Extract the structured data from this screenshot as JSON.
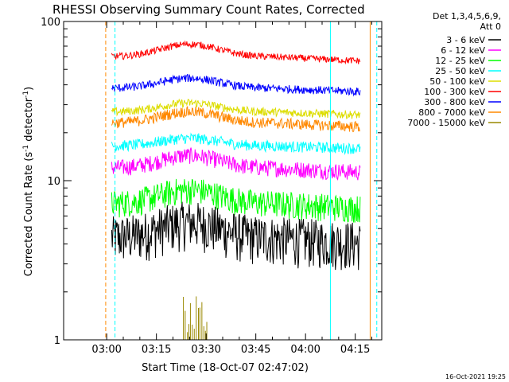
{
  "chart_data": {
    "type": "line",
    "title": "RHESSI Observing Summary Count Rates, Corrected",
    "xlabel": "Start Time (18-Oct-07 02:47:02)",
    "ylabel_main": "Corrected Count Rate (s",
    "ylabel_sup1": "-1",
    "ylabel_mid": " detector",
    "ylabel_sup2": "-1",
    "ylabel_end": ")",
    "yscale": "log",
    "ylim": [
      1,
      100
    ],
    "xlim_minutes": [
      -13,
      83
    ],
    "x_ticks": [
      {
        "m": 0,
        "label": "03:00"
      },
      {
        "m": 15,
        "label": "03:15"
      },
      {
        "m": 30,
        "label": "03:30"
      },
      {
        "m": 45,
        "label": "03:45"
      },
      {
        "m": 60,
        "label": "04:00"
      },
      {
        "m": 75,
        "label": "04:15"
      }
    ],
    "y_ticks": [
      {
        "v": 1,
        "label": "1"
      },
      {
        "v": 10,
        "label": "10"
      },
      {
        "v": 100,
        "label": "100"
      }
    ],
    "legend_header": [
      "Det 1,3,4,5,6,9,",
      "Att 0"
    ],
    "series": [
      {
        "name": "3 - 6 keV",
        "color": "#000000",
        "base": 4.4,
        "noise": 0.35,
        "bump": 0.25
      },
      {
        "name": "6 - 12 keV",
        "color": "#ff00ff",
        "base": 12.0,
        "noise": 0.12,
        "bump": 0.2
      },
      {
        "name": "12 - 25 keV",
        "color": "#00ff00",
        "base": 7.2,
        "noise": 0.2,
        "bump": 0.22
      },
      {
        "name": "25 - 50 keV",
        "color": "#00ffff",
        "base": 16.5,
        "noise": 0.08,
        "bump": 0.12
      },
      {
        "name": "50 - 100 keV",
        "color": "#dddd00",
        "base": 27.0,
        "noise": 0.06,
        "bump": 0.14
      },
      {
        "name": "100 - 300 keV",
        "color": "#ff0000",
        "base": 60.0,
        "noise": 0.05,
        "bump": 0.2
      },
      {
        "name": "300 - 800 keV",
        "color": "#0000ff",
        "base": 38.0,
        "noise": 0.06,
        "bump": 0.16
      },
      {
        "name": "800 - 7000 keV",
        "color": "#ff8800",
        "base": 23.0,
        "noise": 0.08,
        "bump": 0.18
      },
      {
        "name": "7000 - 15000 keV",
        "color": "#998800",
        "base": 1.0,
        "noise": 0.0,
        "bump": 0.0
      }
    ],
    "data_range_minutes": [
      1.5,
      76.5
    ],
    "vertical_lines": [
      {
        "m": -0.3,
        "color": "#ff8800",
        "dash": true
      },
      {
        "m": 2.5,
        "color": "#00ffff",
        "dash": true
      },
      {
        "m": 67.5,
        "color": "#00ffff",
        "dash": false
      },
      {
        "m": 79.5,
        "color": "#ff8800",
        "dash": false
      },
      {
        "m": 81.5,
        "color": "#00ffff",
        "dash": true
      }
    ],
    "timestamp": "16-Oct-2021 19:25"
  }
}
